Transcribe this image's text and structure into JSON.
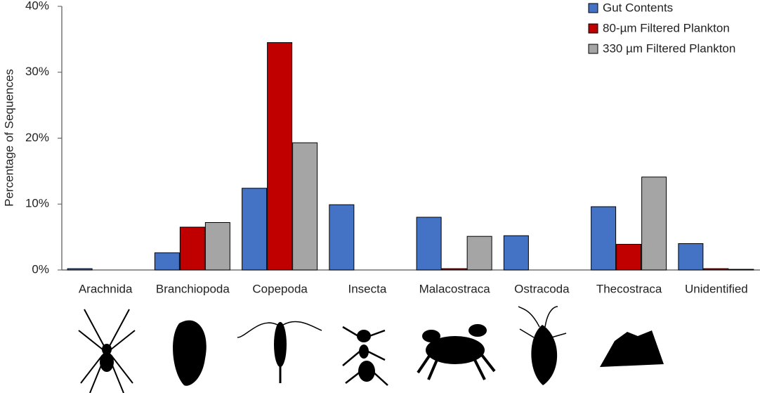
{
  "chart_data": {
    "type": "bar",
    "y_label": "Percentage of Sequences",
    "categories": [
      "Arachnida",
      "Branchiopoda",
      "Copepoda",
      "Insecta",
      "Malacostraca",
      "Ostracoda",
      "Thecostraca",
      "Unidentified"
    ],
    "series": [
      {
        "name": "Gut Contents",
        "color": "#4472c4",
        "values": [
          0.2,
          2.6,
          12.4,
          9.9,
          8.0,
          5.2,
          9.6,
          4.0
        ]
      },
      {
        "name": "80-µm Filtered Plankton",
        "color": "#c00000",
        "values": [
          0,
          6.5,
          34.5,
          0,
          0.2,
          0,
          3.9,
          0.2
        ]
      },
      {
        "name": "330 µm Filtered Plankton",
        "color": "#a5a5a5",
        "values": [
          0,
          7.2,
          19.3,
          0,
          5.1,
          0,
          14.1,
          0.1
        ]
      }
    ],
    "ylim": [
      0,
      40
    ],
    "yticks": [
      {
        "value": 0,
        "label": "0%"
      },
      {
        "value": 10,
        "label": "10%"
      },
      {
        "value": 20,
        "label": "20%"
      },
      {
        "value": 30,
        "label": "30%"
      },
      {
        "value": 40,
        "label": "40%"
      }
    ],
    "legend": "top-right"
  }
}
